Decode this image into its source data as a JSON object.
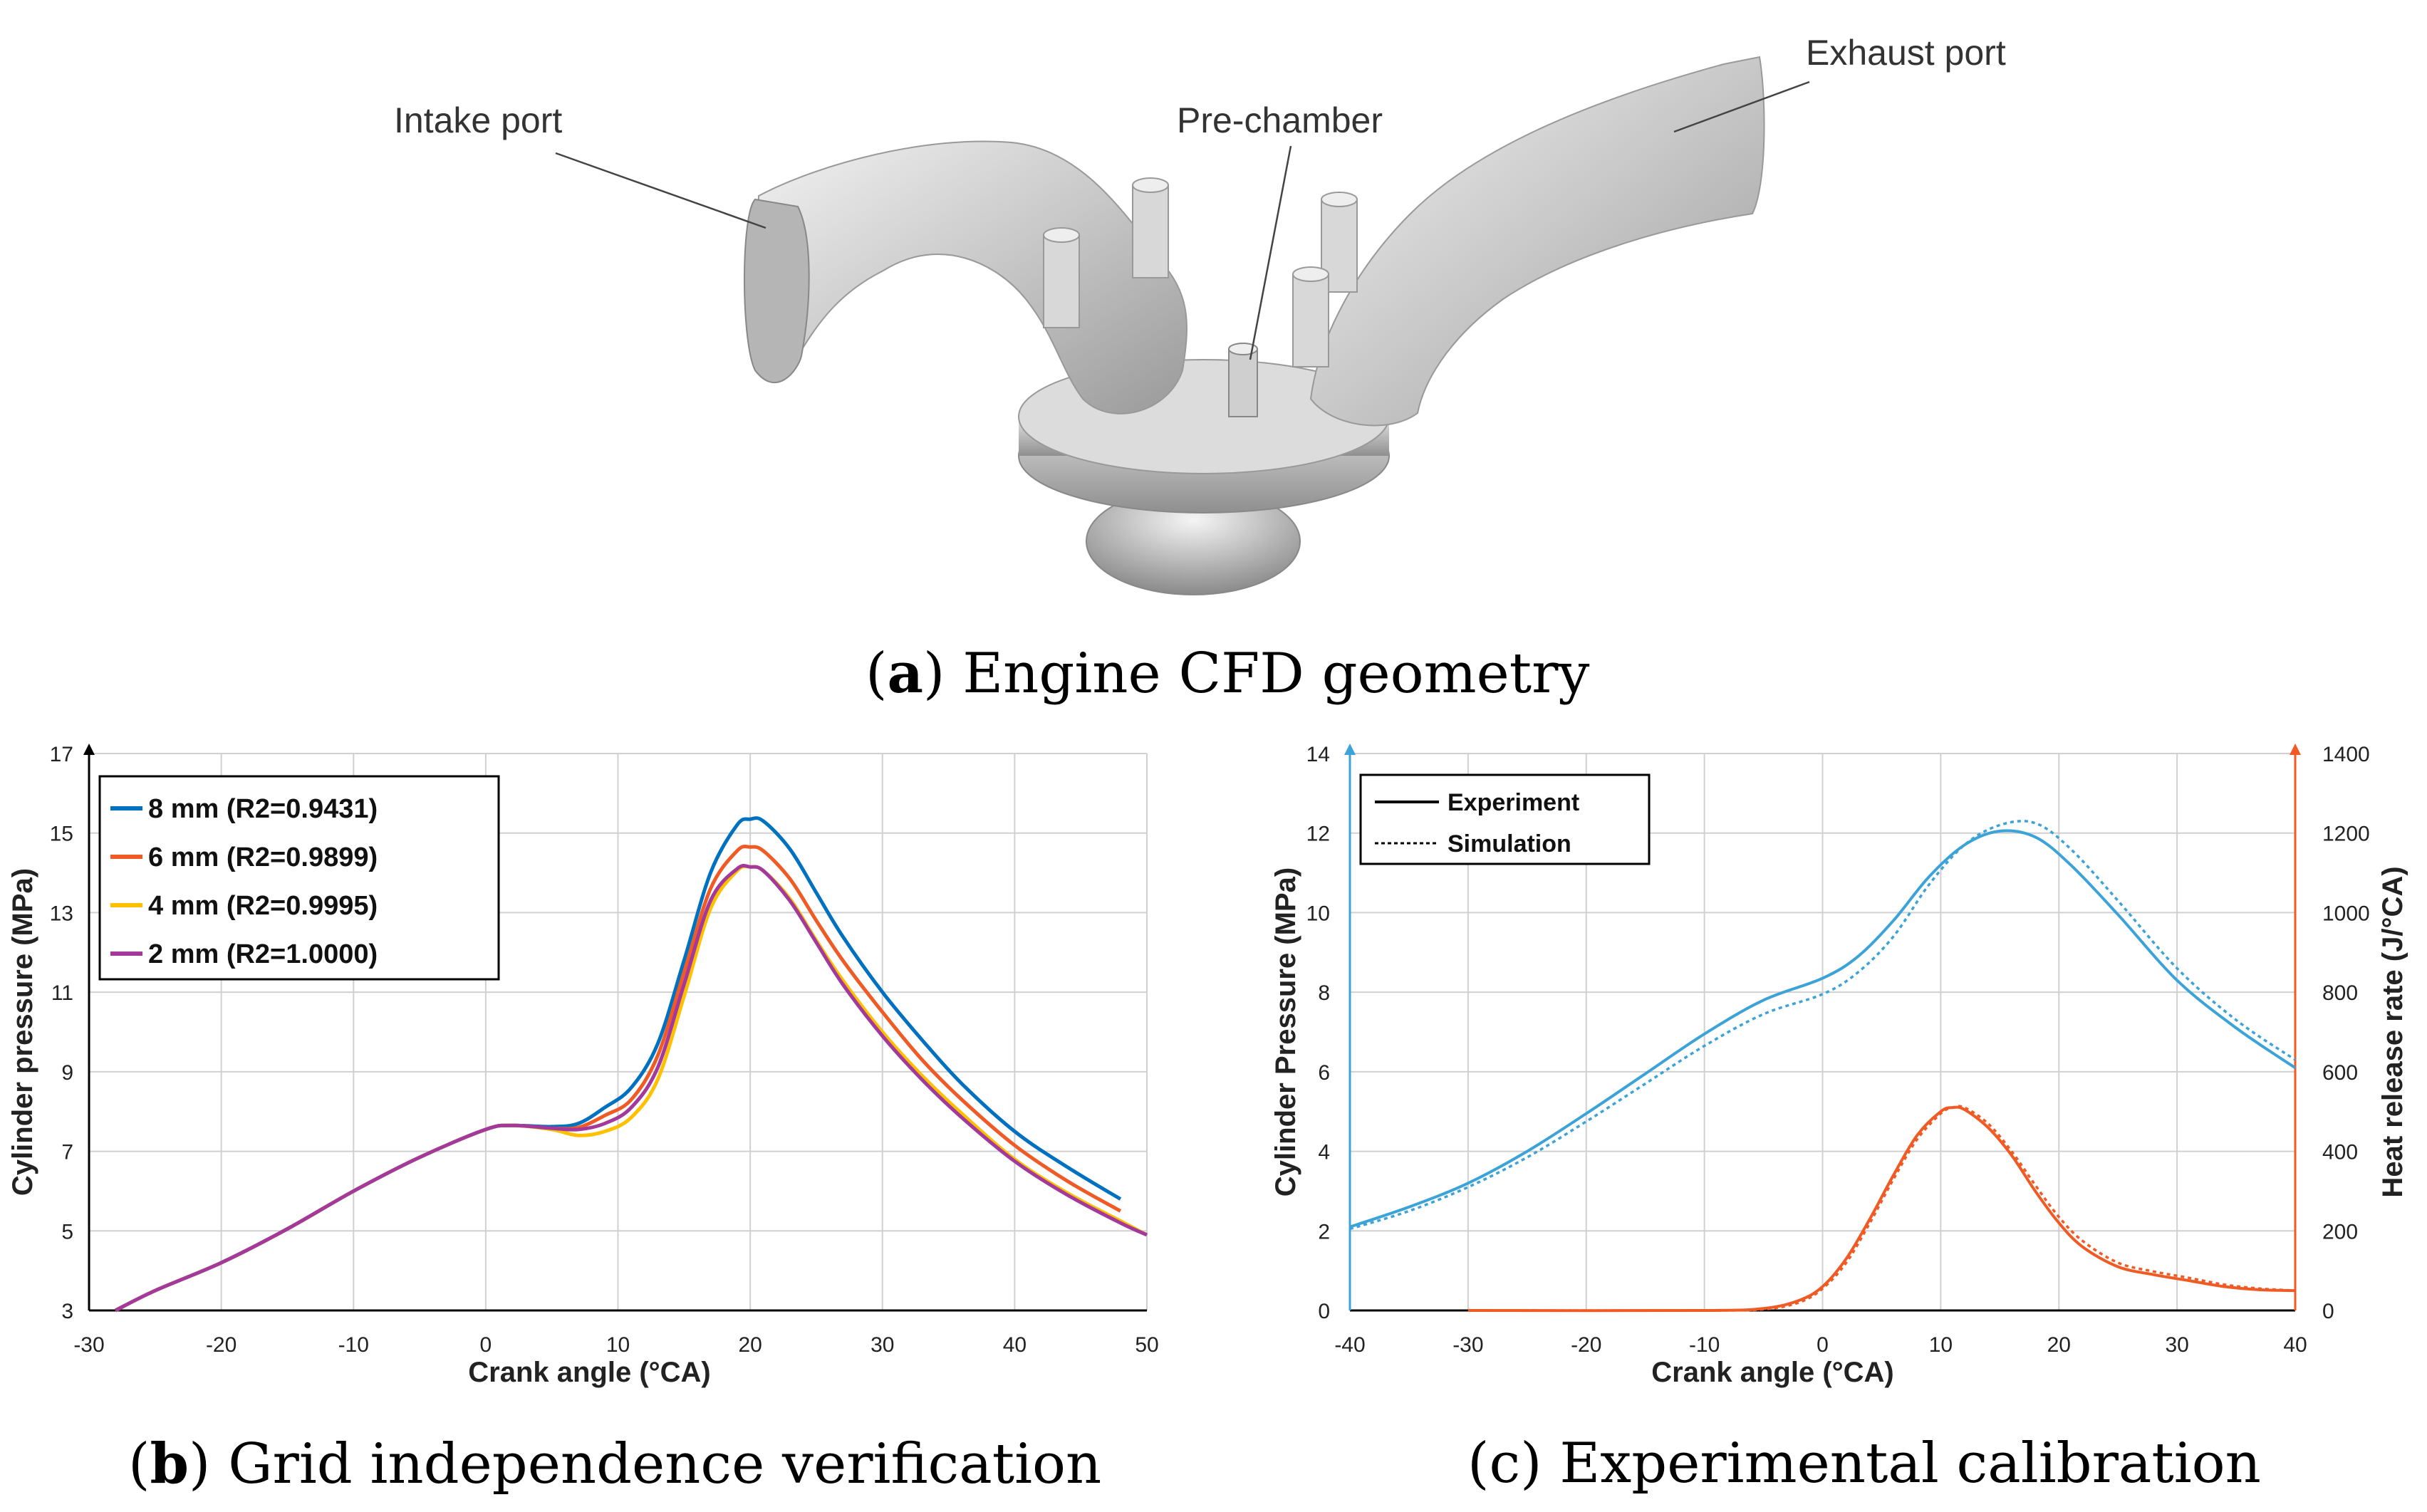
{
  "panel_a": {
    "caption_letter": "a",
    "caption_text": "Engine CFD geometry",
    "labels": {
      "intake": "Intake port",
      "prechamber": "Pre-chamber",
      "exhaust": "Exhaust port"
    }
  },
  "panel_b": {
    "caption_letter": "b",
    "caption_text": "Grid independence verification"
  },
  "panel_c": {
    "caption_letter": "c",
    "caption_text": "Experimental calibration"
  },
  "chart_data": [
    {
      "id": "b",
      "type": "line",
      "title": "",
      "xlabel": "Crank angle (°CA)",
      "ylabel": "Cylinder pressure (MPa)",
      "xlim": [
        -30,
        50
      ],
      "ylim": [
        3,
        17
      ],
      "xticks": [
        -30,
        -20,
        -10,
        0,
        10,
        20,
        30,
        40,
        50
      ],
      "yticks": [
        3,
        5,
        7,
        9,
        11,
        13,
        15,
        17
      ],
      "grid": true,
      "legend": "top-left",
      "series": [
        {
          "name": "8 mm (R2=0.9431)",
          "color": "#0070C0",
          "x": [
            -28,
            -25,
            -20,
            -15,
            -10,
            -5,
            0,
            2,
            5,
            7,
            9,
            11,
            13,
            15,
            17,
            19,
            20,
            21,
            23,
            25,
            27,
            30,
            33,
            36,
            40,
            44,
            48
          ],
          "y": [
            3,
            3.5,
            4.2,
            5.05,
            6.0,
            6.85,
            7.55,
            7.65,
            7.62,
            7.7,
            8.1,
            8.6,
            9.7,
            11.8,
            14.0,
            15.2,
            15.35,
            15.3,
            14.6,
            13.5,
            12.4,
            11.0,
            9.8,
            8.7,
            7.5,
            6.6,
            5.8
          ]
        },
        {
          "name": "6 mm (R2=0.9899)",
          "color": "#F05A24",
          "x": [
            -28,
            -25,
            -20,
            -15,
            -10,
            -5,
            0,
            2,
            5,
            7,
            9,
            11,
            13,
            15,
            17,
            19,
            20,
            21,
            23,
            25,
            27,
            30,
            33,
            36,
            40,
            44,
            48
          ],
          "y": [
            3,
            3.5,
            4.2,
            5.05,
            6.0,
            6.85,
            7.55,
            7.65,
            7.58,
            7.6,
            7.9,
            8.3,
            9.4,
            11.5,
            13.6,
            14.55,
            14.65,
            14.55,
            13.85,
            12.8,
            11.8,
            10.5,
            9.3,
            8.3,
            7.15,
            6.25,
            5.5
          ]
        },
        {
          "name": "4 mm (R2=0.9995)",
          "color": "#FFC000",
          "x": [
            -28,
            -25,
            -20,
            -15,
            -10,
            -5,
            0,
            2,
            5,
            7,
            9,
            11,
            13,
            15,
            17,
            19,
            20,
            21,
            23,
            25,
            27,
            30,
            33,
            36,
            40,
            44,
            48,
            50
          ],
          "y": [
            3,
            3.5,
            4.2,
            5.05,
            6.0,
            6.85,
            7.55,
            7.65,
            7.55,
            7.4,
            7.5,
            7.85,
            8.8,
            10.9,
            13.1,
            14.05,
            14.15,
            14.05,
            13.35,
            12.3,
            11.3,
            10.0,
            8.9,
            7.95,
            6.8,
            5.95,
            5.25,
            4.9
          ]
        },
        {
          "name": "2 mm (R2=1.0000)",
          "color": "#A2399B",
          "x": [
            -28,
            -25,
            -20,
            -15,
            -10,
            -5,
            0,
            2,
            5,
            7,
            9,
            11,
            13,
            15,
            17,
            19,
            20,
            21,
            23,
            25,
            27,
            30,
            33,
            36,
            40,
            44,
            48,
            50
          ],
          "y": [
            3,
            3.5,
            4.2,
            5.05,
            6.0,
            6.85,
            7.55,
            7.65,
            7.58,
            7.55,
            7.7,
            8.1,
            9.1,
            11.2,
            13.3,
            14.1,
            14.15,
            14.05,
            13.3,
            12.25,
            11.2,
            9.9,
            8.8,
            7.85,
            6.75,
            5.9,
            5.2,
            4.9
          ]
        }
      ]
    },
    {
      "id": "c",
      "type": "line",
      "title": "",
      "xlabel": "Crank angle (°CA)",
      "ylabel": "Cylinder Pressure (MPa)",
      "ylabel_right": "Heat release rate (J/°CA)",
      "xlim": [
        -40,
        40
      ],
      "ylim": [
        0,
        14
      ],
      "ylim_right": [
        0,
        1400
      ],
      "xticks": [
        -40,
        -30,
        -20,
        -10,
        0,
        10,
        20,
        30,
        40
      ],
      "yticks": [
        0,
        2,
        4,
        6,
        8,
        10,
        12,
        14
      ],
      "yticks_right": [
        0,
        200,
        400,
        600,
        800,
        1000,
        1200,
        1400
      ],
      "grid": true,
      "legend": "top-left",
      "legend_entries": [
        {
          "name": "Experiment",
          "style": "solid"
        },
        {
          "name": "Simulation",
          "style": "dotted"
        }
      ],
      "series": [
        {
          "name": "Pressure - Experiment",
          "axis": "left",
          "style": "solid",
          "color": "#3BA3D8",
          "x": [
            -40,
            -35,
            -30,
            -25,
            -20,
            -15,
            -10,
            -5,
            0,
            3,
            6,
            9,
            12,
            15,
            18,
            21,
            25,
            30,
            35,
            40
          ],
          "y": [
            2.1,
            2.6,
            3.2,
            4.0,
            4.95,
            5.95,
            6.95,
            7.8,
            8.35,
            8.9,
            9.8,
            10.9,
            11.7,
            12.05,
            11.9,
            11.2,
            9.95,
            8.3,
            7.1,
            6.1
          ]
        },
        {
          "name": "Pressure - Simulation",
          "axis": "left",
          "style": "dotted",
          "color": "#3BA3D8",
          "x": [
            -40,
            -35,
            -30,
            -25,
            -20,
            -15,
            -10,
            -5,
            0,
            3,
            6,
            9,
            12,
            15,
            18,
            21,
            25,
            30,
            35,
            40
          ],
          "y": [
            2.05,
            2.5,
            3.1,
            3.85,
            4.75,
            5.7,
            6.65,
            7.45,
            7.95,
            8.5,
            9.4,
            10.7,
            11.7,
            12.2,
            12.25,
            11.6,
            10.3,
            8.6,
            7.3,
            6.3
          ]
        },
        {
          "name": "HRR - Experiment",
          "axis": "right",
          "style": "solid",
          "color": "#F05A24",
          "x": [
            -30,
            -10,
            -5,
            -2,
            0,
            2,
            4,
            6,
            8,
            10,
            11,
            12,
            14,
            16,
            18,
            20,
            22,
            25,
            28,
            31,
            34,
            37,
            40
          ],
          "y": [
            0,
            0,
            5,
            25,
            60,
            130,
            230,
            340,
            440,
            500,
            510,
            505,
            460,
            390,
            300,
            220,
            160,
            110,
            90,
            75,
            60,
            52,
            50
          ]
        },
        {
          "name": "HRR - Simulation",
          "axis": "right",
          "style": "dotted",
          "color": "#F05A24",
          "x": [
            -30,
            -10,
            -5,
            -2,
            0,
            2,
            4,
            6,
            8,
            10,
            11,
            12,
            14,
            16,
            18,
            20,
            22,
            25,
            28,
            31,
            34,
            37,
            40
          ],
          "y": [
            0,
            0,
            3,
            20,
            55,
            120,
            220,
            330,
            430,
            495,
            510,
            510,
            470,
            400,
            315,
            235,
            175,
            120,
            98,
            82,
            65,
            55,
            50
          ]
        }
      ]
    }
  ]
}
